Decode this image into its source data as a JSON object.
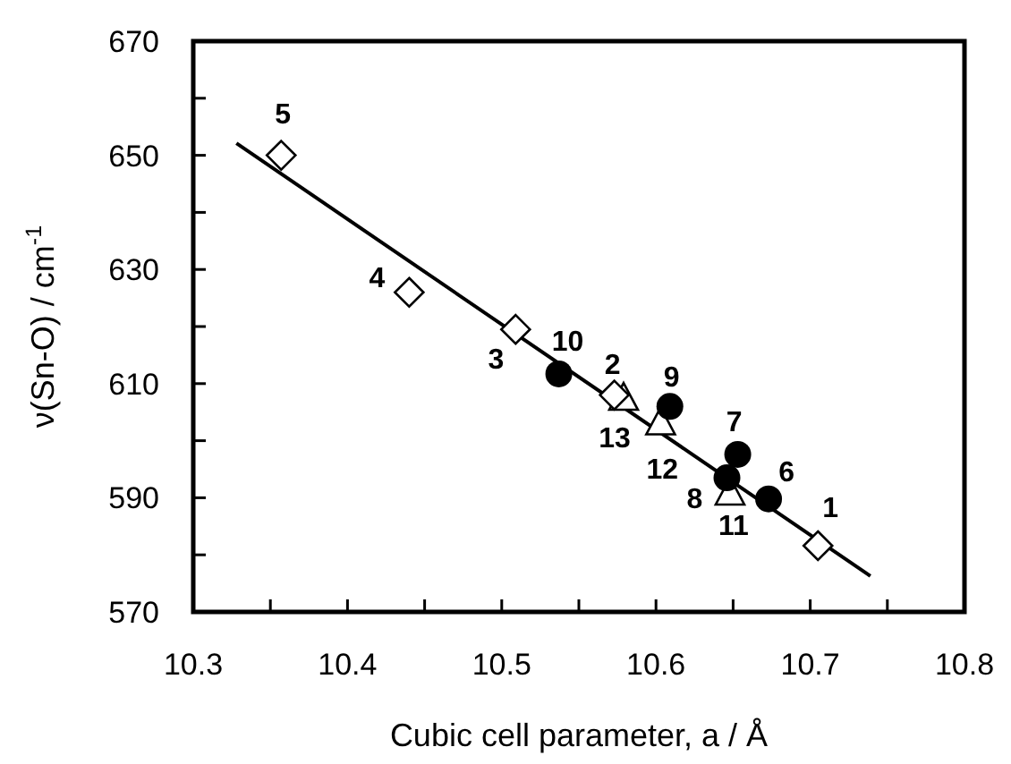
{
  "chart_data": {
    "type": "scatter",
    "xlabel": "Cubic cell parameter, a / Å",
    "ylabel": "ν(Sn-O) / cm$^{-1}$",
    "xlim": [
      10.3,
      10.8
    ],
    "ylim": [
      570,
      670
    ],
    "xticks": [
      10.3,
      {
        "value": 10.35,
        "label": null
      },
      10.4,
      {
        "value": 10.45,
        "label": null
      },
      10.5,
      {
        "value": 10.55,
        "label": null
      },
      10.6,
      {
        "value": 10.65,
        "label": null
      },
      10.7,
      {
        "value": 10.75,
        "label": null
      },
      10.8
    ],
    "yticks": [
      570,
      {
        "value": 580,
        "label": null
      },
      590,
      {
        "value": 600,
        "label": null
      },
      610,
      {
        "value": 620,
        "label": null
      },
      630,
      {
        "value": 640,
        "label": null
      },
      650,
      {
        "value": 660,
        "label": null
      },
      670
    ],
    "grid": false,
    "series": [
      {
        "marker": "diamond",
        "color": "#000000",
        "x": [
          10.705,
          10.573,
          10.509,
          10.44,
          10.357
        ],
        "values": [
          581.6,
          608,
          619.5,
          626,
          650
        ]
      },
      {
        "marker": "circle",
        "color": "#000000",
        "x": [
          10.673,
          10.653,
          10.646,
          10.609,
          10.537
        ],
        "values": [
          589.8,
          597.6,
          593.5,
          606,
          611.7
        ]
      },
      {
        "marker": "triangle",
        "color": "#000000",
        "x": [
          10.648,
          10.603,
          10.579
        ],
        "values": [
          590.7,
          603,
          607.3
        ]
      },
      {
        "type": "line",
        "marker": "none",
        "line_style": "solid",
        "color": "#000000",
        "x": [
          10.328,
          10.739
        ],
        "values": [
          652.1,
          576.3
        ]
      }
    ],
    "annotations": [
      {
        "text": "1",
        "x": 10.705,
        "y": 581.6
      },
      {
        "text": "2",
        "x": 10.573,
        "y": 608
      },
      {
        "text": "3",
        "x": 10.509,
        "y": 619.5
      },
      {
        "text": "4",
        "x": 10.44,
        "y": 626
      },
      {
        "text": "5",
        "x": 10.357,
        "y": 650
      },
      {
        "text": "6",
        "x": 10.673,
        "y": 589.8
      },
      {
        "text": "7",
        "x": 10.653,
        "y": 597.6
      },
      {
        "text": "8",
        "x": 10.646,
        "y": 593.5
      },
      {
        "text": "9",
        "x": 10.609,
        "y": 606
      },
      {
        "text": "10",
        "x": 10.537,
        "y": 611.7
      },
      {
        "text": "11",
        "x": 10.648,
        "y": 590.7
      },
      {
        "text": "12",
        "x": 10.603,
        "y": 603
      },
      {
        "text": "13",
        "x": 10.579,
        "y": 607.3
      }
    ]
  }
}
